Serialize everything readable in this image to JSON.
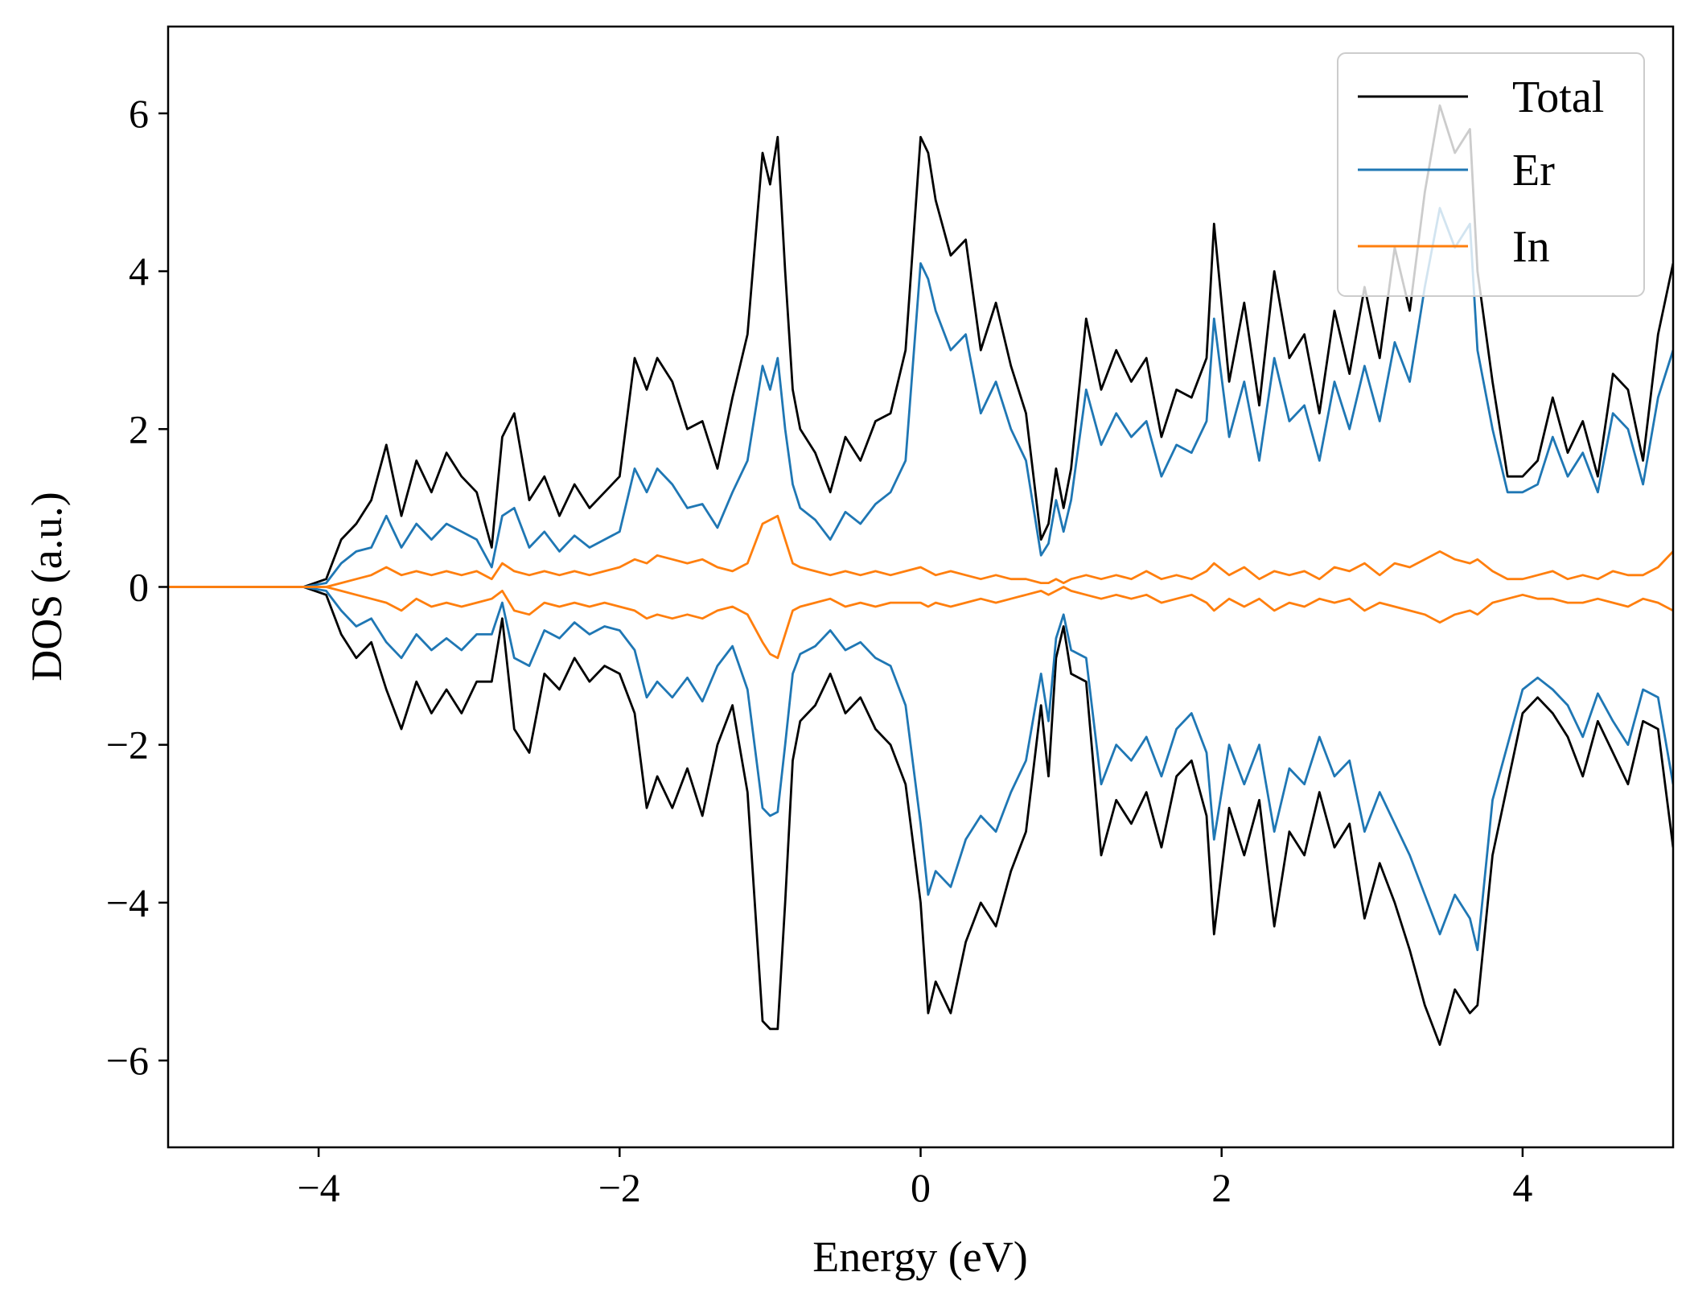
{
  "chart_data": {
    "type": "line",
    "title": "",
    "xlabel": "Energy (eV)",
    "ylabel": "DOS (a.u.)",
    "xlim": [
      -5,
      5
    ],
    "ylim": [
      -7.1,
      7.1
    ],
    "xticks": [
      -4,
      -2,
      0,
      2,
      4
    ],
    "yticks": [
      -6,
      -4,
      -2,
      0,
      2,
      4,
      6
    ],
    "xtick_labels": [
      "−4",
      "−2",
      "0",
      "2",
      "4"
    ],
    "ytick_labels": [
      "−6",
      "−4",
      "−2",
      "0",
      "2",
      "4",
      "6"
    ],
    "grid": false,
    "legend_position": "top-right",
    "legend": [
      "Total",
      "Er",
      "In"
    ],
    "x": [
      -5.0,
      -4.5,
      -4.1,
      -3.95,
      -3.85,
      -3.75,
      -3.65,
      -3.55,
      -3.45,
      -3.35,
      -3.25,
      -3.15,
      -3.05,
      -2.95,
      -2.85,
      -2.78,
      -2.7,
      -2.6,
      -2.5,
      -2.4,
      -2.3,
      -2.2,
      -2.1,
      -2.0,
      -1.9,
      -1.82,
      -1.75,
      -1.65,
      -1.55,
      -1.45,
      -1.35,
      -1.25,
      -1.15,
      -1.05,
      -1.0,
      -0.95,
      -0.9,
      -0.85,
      -0.8,
      -0.7,
      -0.6,
      -0.5,
      -0.4,
      -0.3,
      -0.2,
      -0.1,
      0.0,
      0.05,
      0.1,
      0.2,
      0.3,
      0.4,
      0.5,
      0.6,
      0.7,
      0.8,
      0.85,
      0.9,
      0.95,
      1.0,
      1.1,
      1.2,
      1.3,
      1.4,
      1.5,
      1.6,
      1.7,
      1.8,
      1.9,
      1.95,
      2.05,
      2.15,
      2.25,
      2.35,
      2.45,
      2.55,
      2.65,
      2.75,
      2.85,
      2.95,
      3.05,
      3.15,
      3.25,
      3.35,
      3.45,
      3.55,
      3.65,
      3.7,
      3.8,
      3.9,
      4.0,
      4.1,
      4.2,
      4.3,
      4.4,
      4.5,
      4.6,
      4.7,
      4.8,
      4.9,
      5.0
    ],
    "series": [
      {
        "name": "Total",
        "color": "#000000",
        "up": [
          0,
          0,
          0,
          0.1,
          0.6,
          0.8,
          1.1,
          1.8,
          0.9,
          1.6,
          1.2,
          1.7,
          1.4,
          1.2,
          0.5,
          1.9,
          2.2,
          1.1,
          1.4,
          0.9,
          1.3,
          1.0,
          1.2,
          1.4,
          2.9,
          2.5,
          2.9,
          2.6,
          2.0,
          2.1,
          1.5,
          2.4,
          3.2,
          5.5,
          5.1,
          5.7,
          4.0,
          2.5,
          2.0,
          1.7,
          1.2,
          1.9,
          1.6,
          2.1,
          2.2,
          3.0,
          5.7,
          5.5,
          4.9,
          4.2,
          4.4,
          3.0,
          3.6,
          2.8,
          2.2,
          0.6,
          0.8,
          1.5,
          1.0,
          1.5,
          3.4,
          2.5,
          3.0,
          2.6,
          2.9,
          1.9,
          2.5,
          2.4,
          2.9,
          4.6,
          2.6,
          3.6,
          2.3,
          4.0,
          2.9,
          3.2,
          2.2,
          3.5,
          2.7,
          3.8,
          2.9,
          4.3,
          3.5,
          5.0,
          6.1,
          5.5,
          5.8,
          4.0,
          2.6,
          1.4,
          1.4,
          1.6,
          2.4,
          1.7,
          2.1,
          1.4,
          2.7,
          2.5,
          1.6,
          3.2,
          4.1
        ],
        "down": [
          0,
          0,
          0,
          -0.1,
          -0.6,
          -0.9,
          -0.7,
          -1.3,
          -1.8,
          -1.2,
          -1.6,
          -1.3,
          -1.6,
          -1.2,
          -1.2,
          -0.4,
          -1.8,
          -2.1,
          -1.1,
          -1.3,
          -0.9,
          -1.2,
          -1.0,
          -1.1,
          -1.6,
          -2.8,
          -2.4,
          -2.8,
          -2.3,
          -2.9,
          -2.0,
          -1.5,
          -2.6,
          -5.5,
          -5.6,
          -5.6,
          -4.0,
          -2.2,
          -1.7,
          -1.5,
          -1.1,
          -1.6,
          -1.4,
          -1.8,
          -2.0,
          -2.5,
          -4.0,
          -5.4,
          -5.0,
          -5.4,
          -4.5,
          -4.0,
          -4.3,
          -3.6,
          -3.1,
          -1.5,
          -2.4,
          -0.9,
          -0.5,
          -1.1,
          -1.2,
          -3.4,
          -2.7,
          -3.0,
          -2.6,
          -3.3,
          -2.4,
          -2.2,
          -2.9,
          -4.4,
          -2.8,
          -3.4,
          -2.7,
          -4.3,
          -3.1,
          -3.4,
          -2.6,
          -3.3,
          -3.0,
          -4.2,
          -3.5,
          -4.0,
          -4.6,
          -5.3,
          -5.8,
          -5.1,
          -5.4,
          -5.3,
          -3.4,
          -2.5,
          -1.6,
          -1.4,
          -1.6,
          -1.9,
          -2.4,
          -1.7,
          -2.1,
          -2.5,
          -1.7,
          -1.8,
          -3.3
        ]
      },
      {
        "name": "Er",
        "color": "#1f77b4",
        "up": [
          0,
          0,
          0,
          0.05,
          0.3,
          0.45,
          0.5,
          0.9,
          0.5,
          0.8,
          0.6,
          0.8,
          0.7,
          0.6,
          0.25,
          0.9,
          1.0,
          0.5,
          0.7,
          0.45,
          0.65,
          0.5,
          0.6,
          0.7,
          1.5,
          1.2,
          1.5,
          1.3,
          1.0,
          1.05,
          0.75,
          1.2,
          1.6,
          2.8,
          2.5,
          2.9,
          2.0,
          1.3,
          1.0,
          0.85,
          0.6,
          0.95,
          0.8,
          1.05,
          1.2,
          1.6,
          4.1,
          3.9,
          3.5,
          3.0,
          3.2,
          2.2,
          2.6,
          2.0,
          1.6,
          0.4,
          0.55,
          1.1,
          0.7,
          1.1,
          2.5,
          1.8,
          2.2,
          1.9,
          2.1,
          1.4,
          1.8,
          1.7,
          2.1,
          3.4,
          1.9,
          2.6,
          1.6,
          2.9,
          2.1,
          2.3,
          1.6,
          2.6,
          2.0,
          2.8,
          2.1,
          3.1,
          2.6,
          3.8,
          4.8,
          4.3,
          4.6,
          3.0,
          2.0,
          1.2,
          1.2,
          1.3,
          1.9,
          1.4,
          1.7,
          1.2,
          2.2,
          2.0,
          1.3,
          2.4,
          3.0
        ],
        "down": [
          0,
          0,
          0,
          -0.05,
          -0.3,
          -0.5,
          -0.4,
          -0.7,
          -0.9,
          -0.6,
          -0.8,
          -0.65,
          -0.8,
          -0.6,
          -0.6,
          -0.2,
          -0.9,
          -1.0,
          -0.55,
          -0.65,
          -0.45,
          -0.6,
          -0.5,
          -0.55,
          -0.8,
          -1.4,
          -1.2,
          -1.4,
          -1.15,
          -1.45,
          -1.0,
          -0.75,
          -1.3,
          -2.8,
          -2.9,
          -2.85,
          -2.0,
          -1.1,
          -0.85,
          -0.75,
          -0.55,
          -0.8,
          -0.7,
          -0.9,
          -1.0,
          -1.5,
          -3.0,
          -3.9,
          -3.6,
          -3.8,
          -3.2,
          -2.9,
          -3.1,
          -2.6,
          -2.2,
          -1.1,
          -1.7,
          -0.65,
          -0.35,
          -0.8,
          -0.9,
          -2.5,
          -2.0,
          -2.2,
          -1.9,
          -2.4,
          -1.8,
          -1.6,
          -2.1,
          -3.2,
          -2.0,
          -2.5,
          -2.0,
          -3.1,
          -2.3,
          -2.5,
          -1.9,
          -2.4,
          -2.2,
          -3.1,
          -2.6,
          -3.0,
          -3.4,
          -3.9,
          -4.4,
          -3.9,
          -4.2,
          -4.6,
          -2.7,
          -2.0,
          -1.3,
          -1.15,
          -1.3,
          -1.5,
          -1.9,
          -1.35,
          -1.7,
          -2.0,
          -1.3,
          -1.4,
          -2.5
        ]
      },
      {
        "name": "In",
        "color": "#ff7f0e",
        "up": [
          0,
          0,
          0,
          0.0,
          0.05,
          0.1,
          0.15,
          0.25,
          0.15,
          0.2,
          0.15,
          0.2,
          0.15,
          0.2,
          0.1,
          0.3,
          0.2,
          0.15,
          0.2,
          0.15,
          0.2,
          0.15,
          0.2,
          0.25,
          0.35,
          0.3,
          0.4,
          0.35,
          0.3,
          0.35,
          0.25,
          0.2,
          0.3,
          0.8,
          0.85,
          0.9,
          0.6,
          0.3,
          0.25,
          0.2,
          0.15,
          0.2,
          0.15,
          0.2,
          0.15,
          0.2,
          0.25,
          0.2,
          0.15,
          0.2,
          0.15,
          0.1,
          0.15,
          0.1,
          0.1,
          0.05,
          0.05,
          0.1,
          0.05,
          0.1,
          0.15,
          0.1,
          0.15,
          0.1,
          0.2,
          0.1,
          0.15,
          0.1,
          0.2,
          0.3,
          0.15,
          0.25,
          0.1,
          0.2,
          0.15,
          0.2,
          0.1,
          0.25,
          0.2,
          0.3,
          0.15,
          0.3,
          0.25,
          0.35,
          0.45,
          0.35,
          0.3,
          0.35,
          0.2,
          0.1,
          0.1,
          0.15,
          0.2,
          0.1,
          0.15,
          0.1,
          0.2,
          0.15,
          0.15,
          0.25,
          0.45
        ],
        "down": [
          0,
          0,
          0,
          0.0,
          -0.05,
          -0.1,
          -0.15,
          -0.2,
          -0.3,
          -0.15,
          -0.25,
          -0.2,
          -0.25,
          -0.2,
          -0.15,
          -0.05,
          -0.3,
          -0.35,
          -0.2,
          -0.25,
          -0.2,
          -0.25,
          -0.2,
          -0.25,
          -0.3,
          -0.4,
          -0.35,
          -0.4,
          -0.35,
          -0.4,
          -0.3,
          -0.25,
          -0.35,
          -0.7,
          -0.85,
          -0.9,
          -0.6,
          -0.3,
          -0.25,
          -0.2,
          -0.15,
          -0.25,
          -0.2,
          -0.25,
          -0.2,
          -0.2,
          -0.2,
          -0.25,
          -0.2,
          -0.25,
          -0.2,
          -0.15,
          -0.2,
          -0.15,
          -0.1,
          -0.05,
          -0.1,
          -0.05,
          -0.0,
          -0.05,
          -0.1,
          -0.15,
          -0.1,
          -0.15,
          -0.1,
          -0.2,
          -0.15,
          -0.1,
          -0.2,
          -0.3,
          -0.15,
          -0.25,
          -0.15,
          -0.3,
          -0.2,
          -0.25,
          -0.15,
          -0.2,
          -0.15,
          -0.3,
          -0.2,
          -0.25,
          -0.3,
          -0.35,
          -0.45,
          -0.35,
          -0.3,
          -0.35,
          -0.2,
          -0.15,
          -0.1,
          -0.15,
          -0.15,
          -0.2,
          -0.2,
          -0.15,
          -0.2,
          -0.25,
          -0.15,
          -0.2,
          -0.3
        ]
      }
    ]
  }
}
